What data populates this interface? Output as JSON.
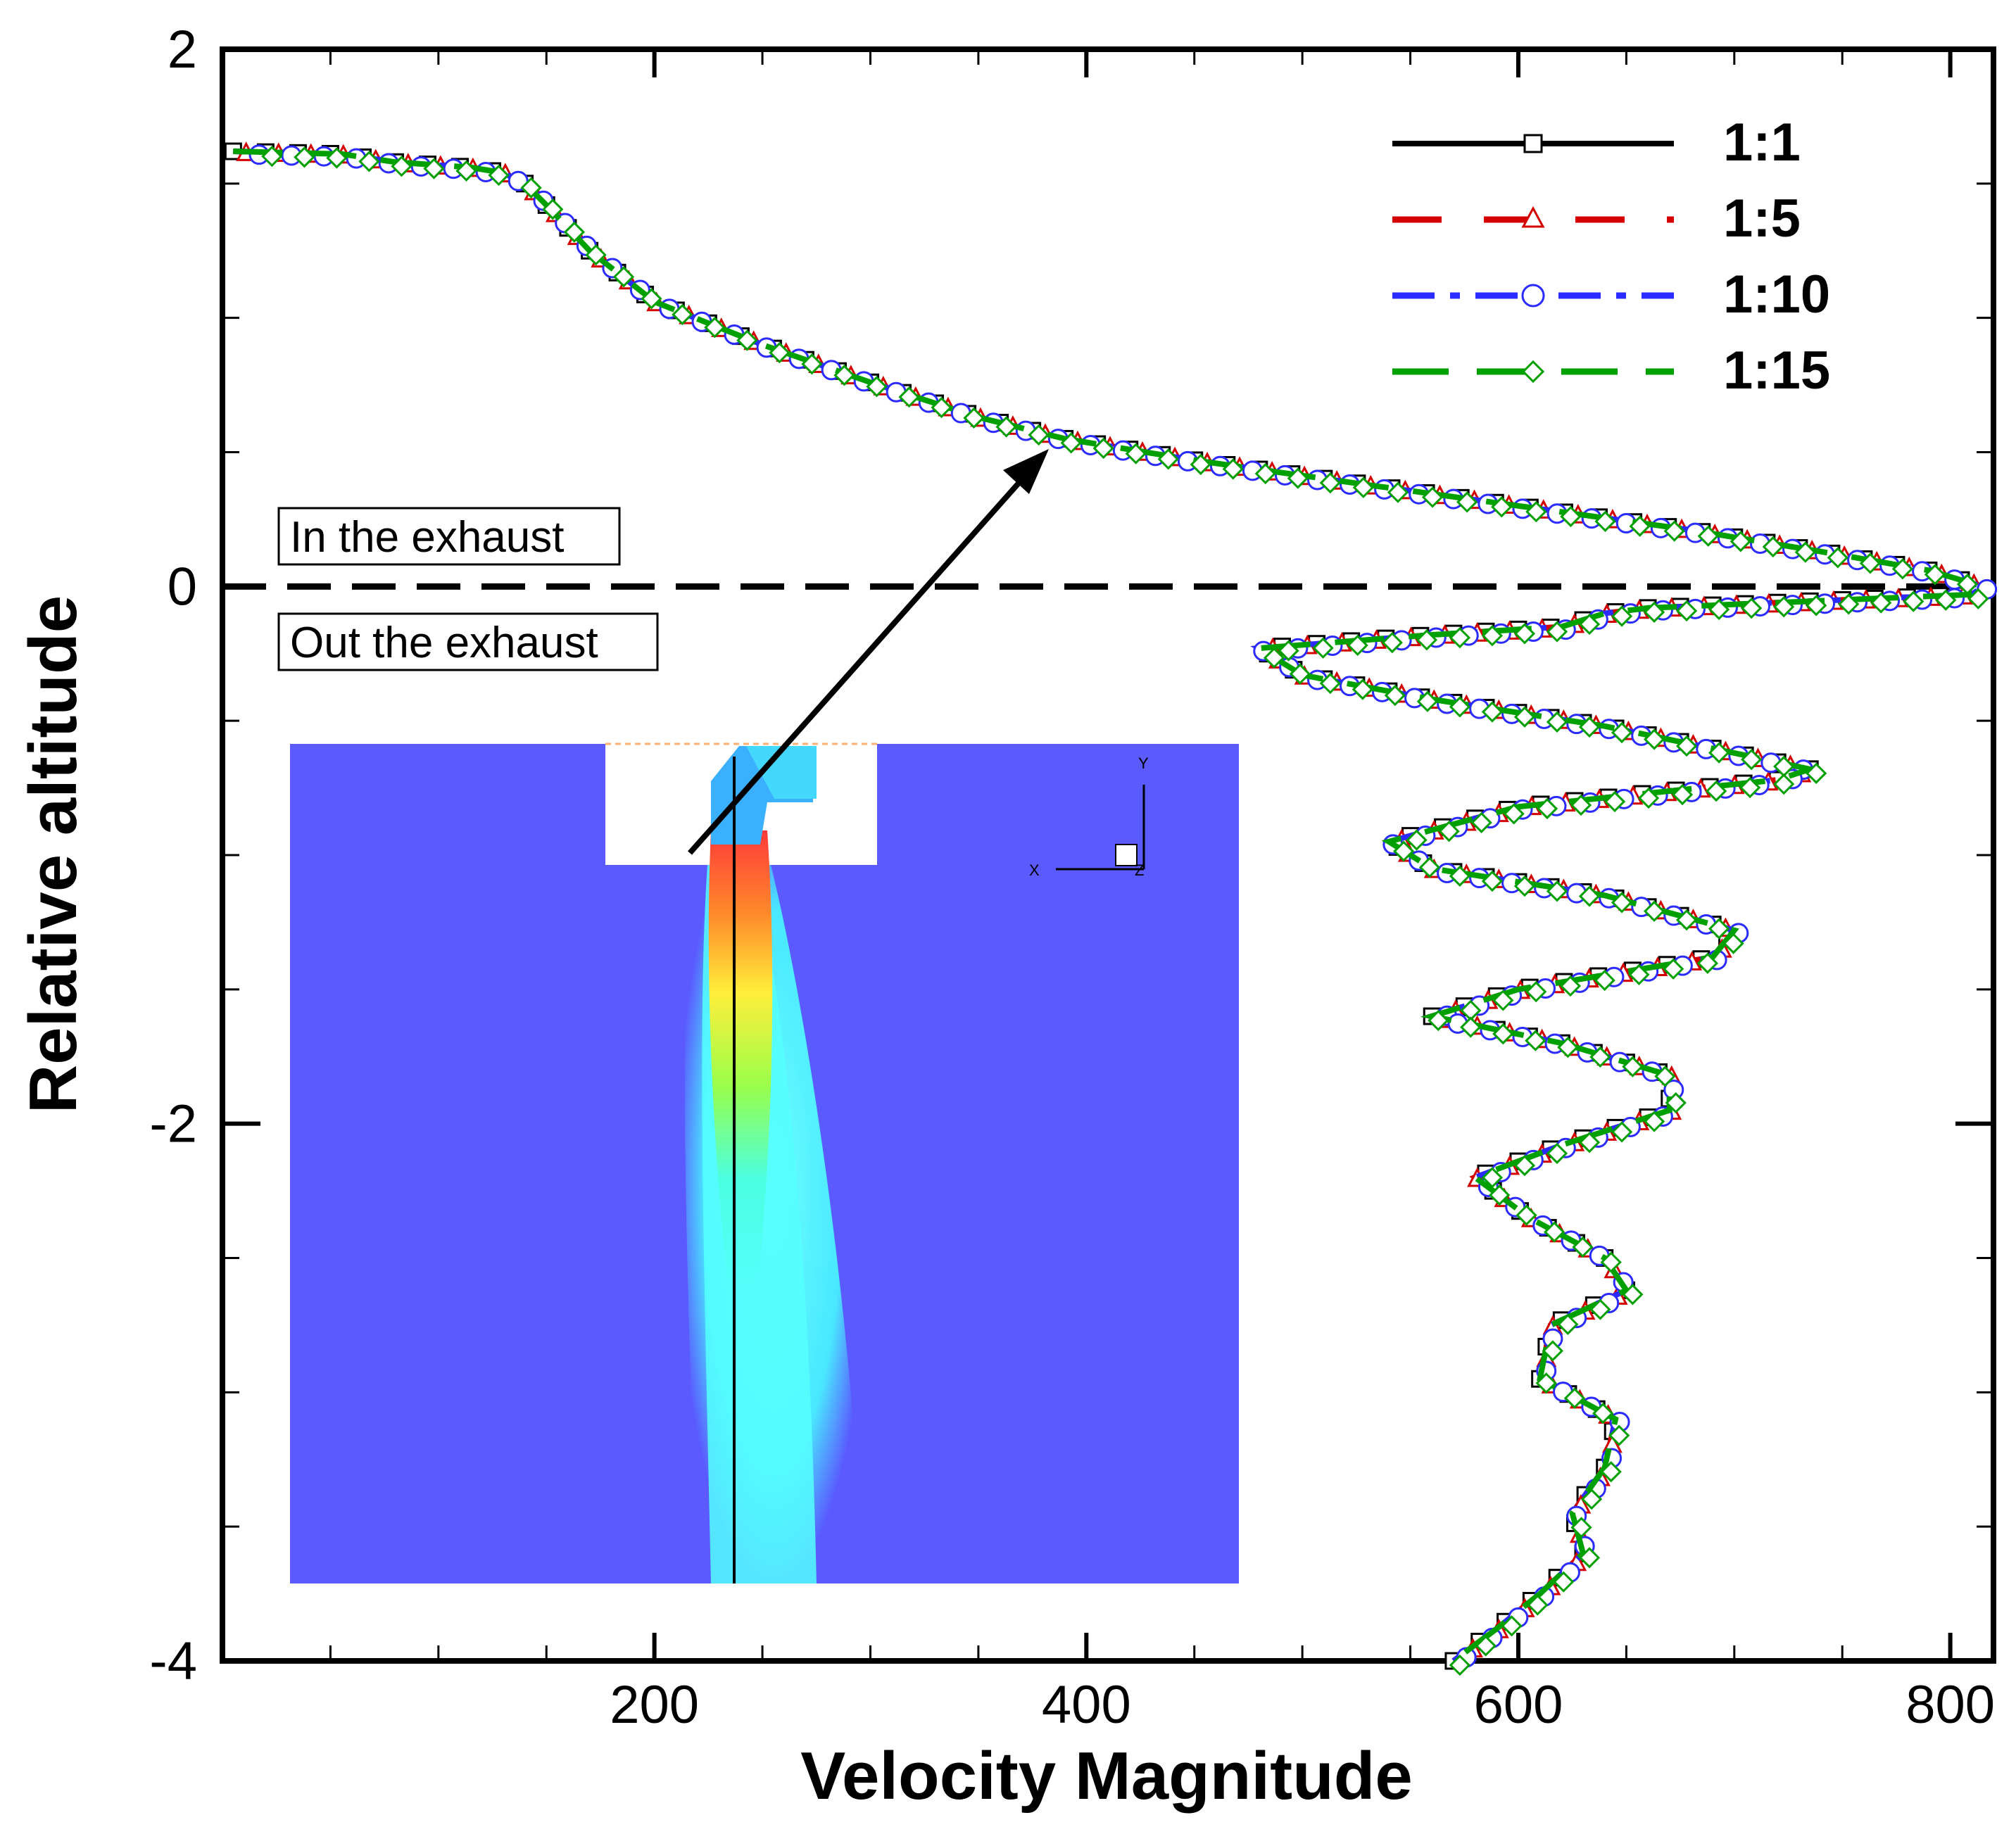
{
  "chart_data": {
    "type": "line",
    "title": "",
    "xlabel": "Velocity Magnitude",
    "ylabel": "Relative altitude",
    "xlim": [
      0,
      820
    ],
    "ylim": [
      -4,
      2
    ],
    "xticks": [
      200,
      400,
      600,
      800
    ],
    "xtick_labels": [
      "200",
      "400",
      "600",
      "800"
    ],
    "yticks": [
      2,
      0,
      -2,
      -4
    ],
    "ytick_labels": [
      "2",
      "0",
      "-2",
      "-4"
    ],
    "x_minor_step": 50,
    "y_minor_step": 0.5,
    "grid": false,
    "legend_position": "top-right",
    "reference_line": {
      "y": 0,
      "style": "dashed"
    },
    "series": [
      {
        "name": "1:1",
        "color": "#000000",
        "dash": "none",
        "marker": "square"
      },
      {
        "name": "1:5",
        "color": "#d40000",
        "dash": "long-dash",
        "marker": "triangle"
      },
      {
        "name": "1:10",
        "color": "#2b2bff",
        "dash": "dash-dot",
        "marker": "circle"
      },
      {
        "name": "1:15",
        "color": "#00a000",
        "dash": "dash",
        "marker": "diamond"
      }
    ],
    "profile": {
      "x": [
        5,
        55,
        80,
        115,
        130,
        140,
        150,
        170,
        200,
        250,
        300,
        350,
        390,
        450,
        520,
        600,
        680,
        740,
        790,
        815,
        810,
        780,
        720,
        660,
        640,
        620,
        560,
        480,
        500,
        560,
        640,
        700,
        735,
        720,
        600,
        540,
        560,
        640,
        700,
        690,
        600,
        560,
        620,
        670,
        670,
        620,
        580,
        605,
        640,
        650,
        615,
        610,
        645,
        640,
        625,
        630,
        610,
        590,
        570
      ],
      "y": [
        1.62,
        1.61,
        1.58,
        1.56,
        1.54,
        1.5,
        1.42,
        1.25,
        1.06,
        0.9,
        0.76,
        0.63,
        0.55,
        0.47,
        0.39,
        0.3,
        0.21,
        0.13,
        0.06,
        0.0,
        -0.03,
        -0.04,
        -0.06,
        -0.08,
        -0.1,
        -0.15,
        -0.18,
        -0.23,
        -0.33,
        -0.42,
        -0.52,
        -0.62,
        -0.68,
        -0.72,
        -0.82,
        -0.95,
        -1.05,
        -1.15,
        -1.28,
        -1.38,
        -1.5,
        -1.6,
        -1.7,
        -1.82,
        -1.95,
        -2.08,
        -2.2,
        -2.35,
        -2.5,
        -2.62,
        -2.75,
        -2.95,
        -3.1,
        -3.28,
        -3.45,
        -3.6,
        -3.75,
        -3.88,
        -4.0
      ]
    },
    "legend_entries": [
      "1:1",
      "1:5",
      "1:10",
      "1:15"
    ],
    "annotations": [
      "In the exhaust",
      "Out the exhaust"
    ],
    "inset": {
      "description_axes": {
        "y_label": "Y",
        "x_label": "X",
        "z_label": "Z"
      }
    }
  }
}
